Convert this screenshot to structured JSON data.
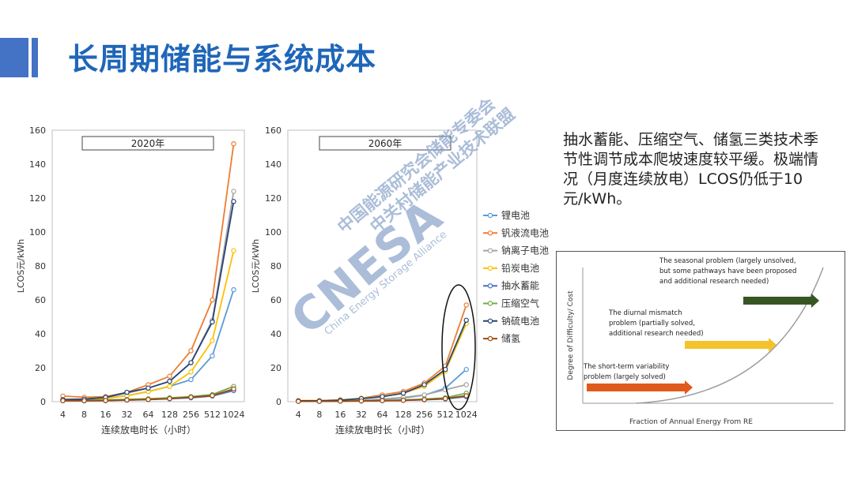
{
  "page": {
    "title": "长周期储能与系统成本"
  },
  "description": "抽水蓄能、压缩空气、储氢三类技术季节性调节成本爬坡速度较平缓。极端情况（月度连续放电）LCOS仍低于10元/kWh。",
  "watermark": {
    "logo": "CNESA",
    "subtitle": "China Energy Storage Alliance",
    "line1": "中国能源研究会储能专委会",
    "line2": "中关村储能产业技术联盟"
  },
  "chart_data": [
    {
      "type": "line",
      "title": "2020年",
      "xlabel": "连续放电时长（小时）",
      "ylabel": "LCOS元/kWh",
      "categories": [
        "4",
        "8",
        "16",
        "32",
        "64",
        "128",
        "256",
        "512",
        "1024"
      ],
      "ylim": [
        0,
        160
      ],
      "yticks": [
        "0",
        "20",
        "40",
        "60",
        "80",
        "100",
        "120",
        "140",
        "160"
      ],
      "series": [
        {
          "name": "锂电池",
          "color": "#5b9bd5",
          "values": [
            1.2,
            1.3,
            2,
            3.5,
            6,
            9,
            13,
            27,
            66
          ]
        },
        {
          "name": "钒液流电池",
          "color": "#ed7d31",
          "values": [
            3.3,
            2.6,
            3,
            5.5,
            10,
            15,
            30,
            60,
            152
          ]
        },
        {
          "name": "钠离子电池",
          "color": "#a5a5a5",
          "values": [
            1.3,
            1.6,
            2.5,
            5,
            8,
            12,
            23,
            48,
            124
          ]
        },
        {
          "name": "铅炭电池",
          "color": "#ffc000",
          "values": [
            0.8,
            1,
            1.8,
            3.5,
            6,
            9,
            17.5,
            36,
            89
          ]
        },
        {
          "name": "抽水蓄能",
          "color": "#4472c4",
          "values": [
            0.6,
            0.5,
            0.6,
            0.9,
            1.2,
            1.7,
            2.3,
            3.3,
            6.5
          ]
        },
        {
          "name": "压缩空气",
          "color": "#70ad47",
          "values": [
            0.9,
            0.9,
            1,
            1.3,
            1.7,
            2.3,
            3,
            4.2,
            9
          ]
        },
        {
          "name": "钠硫电池",
          "color": "#264478",
          "values": [
            1.2,
            1.5,
            2.5,
            5.5,
            8,
            12,
            23,
            47,
            118
          ]
        },
        {
          "name": "储氢",
          "color": "#9e480e",
          "values": [
            0.6,
            0.6,
            0.7,
            1,
            1.3,
            1.8,
            2.6,
            3.6,
            7.5
          ]
        }
      ]
    },
    {
      "type": "line",
      "title": "2060年",
      "xlabel": "连续放电时长（小时）",
      "ylabel": "LCOS元/kWh",
      "categories": [
        "4",
        "8",
        "16",
        "32",
        "64",
        "128",
        "256",
        "512",
        "1024"
      ],
      "ylim": [
        0,
        160
      ],
      "yticks": [
        "0",
        "20",
        "40",
        "60",
        "80",
        "100",
        "120",
        "140",
        "160"
      ],
      "series": [
        {
          "name": "锂电池",
          "color": "#5b9bd5",
          "values": [
            0.4,
            0.4,
            0.6,
            0.9,
            1.4,
            2.2,
            3.8,
            8,
            19
          ]
        },
        {
          "name": "钒液流电池",
          "color": "#ed7d31",
          "values": [
            0.6,
            0.6,
            1,
            2,
            4,
            6,
            11,
            21,
            57
          ]
        },
        {
          "name": "钠离子电池",
          "color": "#a5a5a5",
          "values": [
            0.4,
            0.4,
            0.6,
            1,
            1.5,
            2.5,
            4,
            7,
            10
          ]
        },
        {
          "name": "铅炭电池",
          "color": "#ffc000",
          "values": [
            0.6,
            0.6,
            1,
            2,
            3,
            5,
            9,
            18,
            46
          ]
        },
        {
          "name": "抽水蓄能",
          "color": "#4472c4",
          "values": [
            0.2,
            0.2,
            0.3,
            0.4,
            0.6,
            0.8,
            1.1,
            1.6,
            3
          ]
        },
        {
          "name": "压缩空气",
          "color": "#70ad47",
          "values": [
            0.3,
            0.3,
            0.4,
            0.5,
            0.7,
            1,
            1.5,
            2.3,
            5
          ]
        },
        {
          "name": "钠硫电池",
          "color": "#264478",
          "values": [
            0.5,
            0.5,
            0.9,
            1.8,
            3,
            5,
            10,
            19,
            48
          ]
        },
        {
          "name": "储氢",
          "color": "#9e480e",
          "values": [
            0.2,
            0.2,
            0.3,
            0.4,
            0.6,
            0.8,
            1.2,
            1.8,
            3.5
          ]
        }
      ]
    }
  ],
  "inset": {
    "ylabel": "Degree of Difficulty/ Cost",
    "xlabel": "Fraction of Annual Energy From RE",
    "items": [
      {
        "lines": [
          "The seasonal problem (largely unsolved,",
          "but some pathways have been proposed",
          "and additional research needed)"
        ],
        "color": "#375623"
      },
      {
        "lines": [
          "The diurnal mismatch",
          "problem (partially solved,",
          "additional research needed)"
        ],
        "color": "#f4c22b"
      },
      {
        "lines": [
          "The short-term variability",
          "problem (largely solved)"
        ],
        "color": "#e05a1b"
      }
    ]
  }
}
